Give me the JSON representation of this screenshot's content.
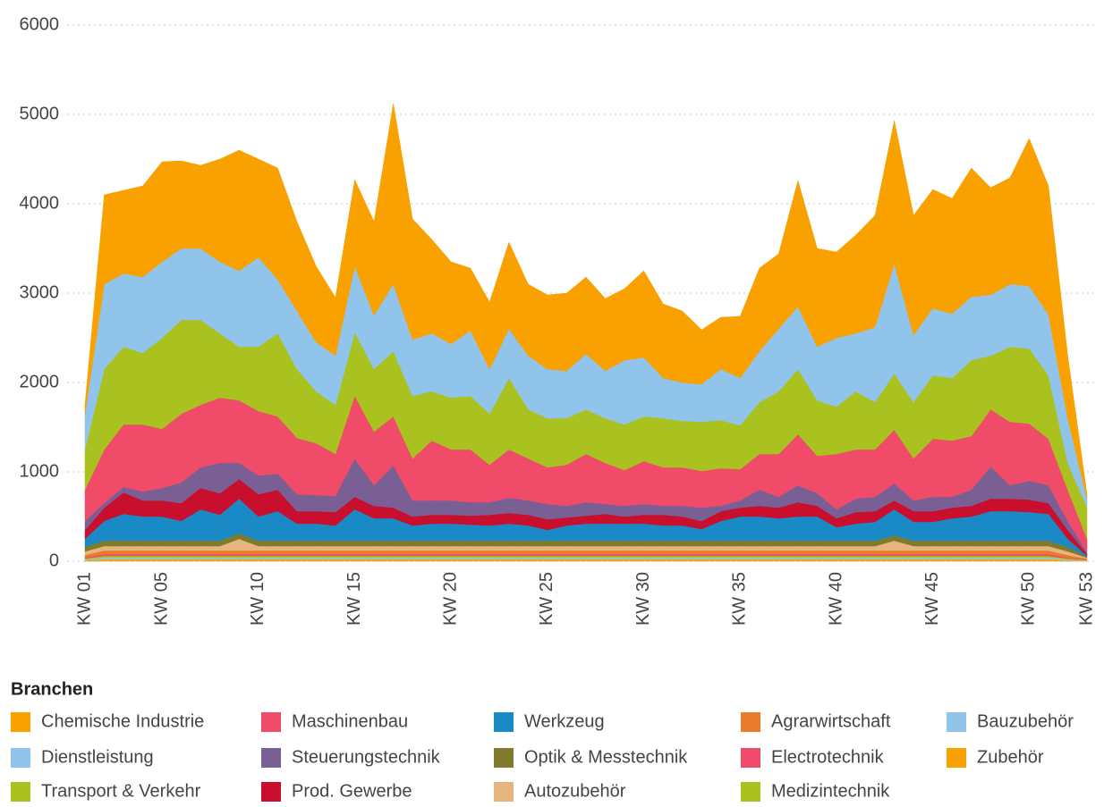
{
  "chart_data": {
    "type": "stacked_area",
    "categories": [
      "KW 01",
      null,
      null,
      null,
      "KW 05",
      null,
      null,
      null,
      null,
      "KW 10",
      null,
      null,
      null,
      null,
      "KW 15",
      null,
      null,
      null,
      null,
      "KW 20",
      null,
      null,
      null,
      null,
      "KW 25",
      null,
      null,
      null,
      null,
      "KW 30",
      null,
      null,
      null,
      null,
      "KW 35",
      null,
      null,
      null,
      null,
      "KW 40",
      null,
      null,
      null,
      null,
      "KW 45",
      null,
      null,
      null,
      null,
      "KW 50",
      null,
      null,
      "KW 53"
    ],
    "ylim": [
      0,
      6000
    ],
    "yticks": [
      0,
      1000,
      2000,
      3000,
      4000,
      5000,
      6000
    ],
    "grid": true,
    "legend_title": "Branchen",
    "series": [
      {
        "name": "Chemische Industrie",
        "color": "#f8a100",
        "values": [
          100,
          1000,
          930,
          1020,
          1120,
          980,
          930,
          1150,
          1350,
          1100,
          1250,
          1000,
          850,
          650,
          970,
          1050,
          2020,
          1350,
          1050,
          920,
          700,
          750,
          970,
          800,
          830,
          870,
          860,
          810,
          800,
          970,
          830,
          800,
          610,
          580,
          690,
          930,
          840,
          1410,
          1100,
          960,
          1100,
          1250,
          1600,
          1340,
          1330,
          1290,
          1440,
          1200,
          1190,
          1650,
          1440,
          700,
          50
        ]
      },
      {
        "name": "Dienstleistung",
        "color": "#91c4ea",
        "values": [
          400,
          950,
          820,
          850,
          850,
          800,
          800,
          800,
          850,
          1000,
          600,
          650,
          550,
          550,
          740,
          600,
          750,
          630,
          650,
          600,
          730,
          500,
          550,
          600,
          550,
          530,
          620,
          530,
          720,
          660,
          450,
          430,
          420,
          570,
          530,
          570,
          700,
          700,
          600,
          770,
          650,
          840,
          1230,
          750,
          750,
          720,
          710,
          680,
          700,
          700,
          680,
          500,
          100
        ]
      },
      {
        "name": "Transport & Verkehr",
        "color": "#a9c21f",
        "values": [
          450,
          900,
          870,
          800,
          1020,
          1050,
          950,
          720,
          600,
          720,
          930,
          770,
          580,
          550,
          710,
          700,
          730,
          700,
          550,
          580,
          600,
          570,
          800,
          550,
          550,
          520,
          500,
          500,
          510,
          500,
          550,
          520,
          550,
          540,
          490,
          580,
          700,
          730,
          620,
          530,
          650,
          530,
          630,
          630,
          710,
          700,
          850,
          600,
          840,
          840,
          710,
          300,
          350
        ]
      },
      {
        "name": "Maschinenbau",
        "color": "#f04b68",
        "values": [
          350,
          600,
          700,
          750,
          660,
          770,
          700,
          730,
          700,
          720,
          640,
          630,
          580,
          470,
          700,
          600,
          550,
          470,
          670,
          570,
          590,
          420,
          540,
          470,
          410,
          460,
          540,
          460,
          400,
          480,
          430,
          430,
          410,
          420,
          350,
          400,
          480,
          570,
          420,
          620,
          550,
          530,
          600,
          470,
          650,
          630,
          600,
          640,
          710,
          640,
          520,
          350,
          150
        ]
      },
      {
        "name": "Steuerungstechnik",
        "color": "#7a5f95",
        "values": [
          100,
          50,
          60,
          100,
          140,
          230,
          230,
          340,
          180,
          210,
          180,
          190,
          180,
          180,
          430,
          230,
          470,
          180,
          160,
          160,
          150,
          140,
          170,
          160,
          170,
          130,
          150,
          110,
          120,
          120,
          100,
          120,
          150,
          60,
          80,
          180,
          120,
          190,
          140,
          100,
          150,
          160,
          190,
          120,
          160,
          120,
          180,
          360,
          150,
          210,
          200,
          100,
          20
        ]
      },
      {
        "name": "Prod. Gewerbe",
        "color": "#c8102e",
        "values": [
          100,
          150,
          240,
          180,
          180,
          200,
          240,
          240,
          220,
          250,
          240,
          140,
          140,
          150,
          140,
          140,
          120,
          100,
          100,
          100,
          100,
          120,
          120,
          120,
          120,
          90,
          90,
          110,
          80,
          100,
          120,
          100,
          90,
          110,
          100,
          120,
          120,
          160,
          120,
          100,
          130,
          120,
          100,
          120,
          120,
          120,
          120,
          140,
          140,
          140,
          120,
          100,
          20
        ]
      },
      {
        "name": "Werkzeug",
        "color": "#1a8ac6",
        "values": [
          90,
          220,
          300,
          270,
          270,
          220,
          350,
          290,
          390,
          270,
          330,
          190,
          190,
          170,
          350,
          250,
          250,
          170,
          190,
          190,
          180,
          170,
          190,
          170,
          120,
          170,
          190,
          190,
          190,
          190,
          170,
          170,
          130,
          220,
          270,
          270,
          250,
          270,
          270,
          150,
          190,
          210,
          290,
          210,
          210,
          250,
          270,
          330,
          330,
          320,
          300,
          90,
          10
        ]
      },
      {
        "name": "Optik & Messtechnik",
        "color": "#7f7a2c",
        "values": [
          50,
          60,
          60,
          60,
          60,
          60,
          60,
          60,
          60,
          60,
          60,
          60,
          60,
          60,
          60,
          60,
          60,
          60,
          60,
          60,
          60,
          60,
          60,
          60,
          60,
          60,
          60,
          60,
          60,
          60,
          60,
          60,
          60,
          60,
          60,
          60,
          60,
          60,
          60,
          60,
          60,
          60,
          60,
          60,
          60,
          60,
          60,
          60,
          60,
          60,
          60,
          50,
          10
        ]
      },
      {
        "name": "Autozubehör",
        "color": "#e6b57d",
        "values": [
          40,
          50,
          50,
          50,
          50,
          50,
          50,
          50,
          130,
          50,
          50,
          50,
          50,
          50,
          50,
          50,
          50,
          50,
          50,
          50,
          50,
          50,
          50,
          50,
          50,
          50,
          50,
          50,
          50,
          50,
          50,
          50,
          50,
          50,
          50,
          50,
          50,
          50,
          50,
          50,
          50,
          50,
          110,
          50,
          50,
          50,
          50,
          50,
          50,
          50,
          50,
          40,
          10
        ]
      },
      {
        "name": "Agrarwirtschaft",
        "color": "#e97b2c",
        "values": [
          30,
          40,
          40,
          40,
          40,
          40,
          40,
          40,
          40,
          40,
          40,
          40,
          40,
          40,
          40,
          40,
          40,
          40,
          40,
          40,
          40,
          40,
          40,
          40,
          40,
          40,
          40,
          40,
          40,
          40,
          40,
          40,
          40,
          40,
          40,
          40,
          40,
          40,
          40,
          40,
          40,
          40,
          40,
          40,
          40,
          40,
          40,
          40,
          40,
          40,
          40,
          30,
          10
        ]
      },
      {
        "name": "Electrotechnik",
        "color": "#f04b68",
        "values": [
          10,
          20,
          20,
          20,
          20,
          20,
          20,
          20,
          20,
          20,
          20,
          20,
          20,
          20,
          20,
          20,
          20,
          20,
          20,
          20,
          20,
          20,
          20,
          20,
          20,
          20,
          20,
          20,
          20,
          20,
          20,
          20,
          20,
          20,
          20,
          20,
          20,
          20,
          20,
          20,
          20,
          20,
          20,
          20,
          20,
          20,
          20,
          20,
          20,
          20,
          20,
          10,
          5
        ]
      },
      {
        "name": "Medizintechnik",
        "color": "#a9c21f",
        "values": [
          10,
          20,
          20,
          20,
          20,
          20,
          20,
          20,
          20,
          20,
          20,
          20,
          20,
          20,
          20,
          20,
          20,
          20,
          20,
          20,
          20,
          20,
          20,
          20,
          20,
          20,
          20,
          20,
          20,
          20,
          20,
          20,
          20,
          20,
          20,
          20,
          20,
          20,
          20,
          20,
          20,
          20,
          20,
          20,
          20,
          20,
          20,
          20,
          20,
          20,
          20,
          10,
          5
        ]
      },
      {
        "name": "Bauzubehör",
        "color": "#91c4ea",
        "values": [
          10,
          20,
          20,
          20,
          20,
          20,
          20,
          20,
          20,
          20,
          20,
          20,
          20,
          20,
          20,
          20,
          20,
          20,
          20,
          20,
          20,
          20,
          20,
          20,
          20,
          20,
          20,
          20,
          20,
          20,
          20,
          20,
          20,
          20,
          20,
          20,
          20,
          20,
          20,
          20,
          20,
          20,
          20,
          20,
          20,
          20,
          20,
          20,
          20,
          20,
          20,
          10,
          5
        ]
      },
      {
        "name": "Zubehör",
        "color": "#f8a100",
        "values": [
          10,
          20,
          20,
          20,
          20,
          20,
          20,
          20,
          20,
          20,
          20,
          20,
          20,
          20,
          20,
          20,
          20,
          20,
          20,
          20,
          20,
          20,
          20,
          20,
          20,
          20,
          20,
          20,
          20,
          20,
          20,
          20,
          20,
          20,
          20,
          20,
          20,
          20,
          20,
          20,
          20,
          20,
          20,
          20,
          20,
          20,
          20,
          20,
          20,
          20,
          20,
          10,
          5
        ]
      }
    ]
  }
}
